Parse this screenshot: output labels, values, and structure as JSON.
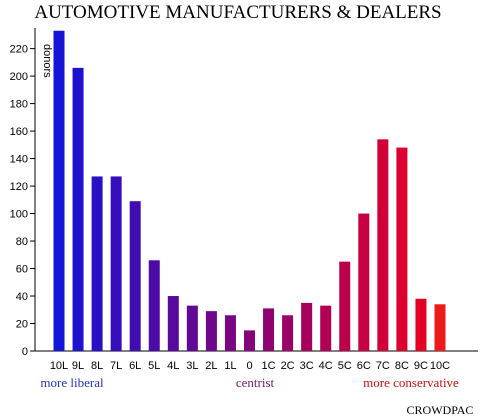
{
  "chart_data": {
    "type": "bar",
    "title": "AUTOMOTIVE MANUFACTURERS & DEALERS",
    "ylabel": "donors",
    "xlabel": "",
    "ylim": [
      0,
      235
    ],
    "yticks": [
      0,
      20,
      40,
      60,
      80,
      100,
      120,
      140,
      160,
      180,
      200,
      220
    ],
    "categories": [
      "10L",
      "9L",
      "8L",
      "7L",
      "6L",
      "5L",
      "4L",
      "3L",
      "2L",
      "1L",
      "0",
      "1C",
      "2C",
      "3C",
      "4C",
      "5C",
      "6C",
      "7C",
      "8C",
      "9C",
      "10C"
    ],
    "values": [
      233,
      206,
      127,
      127,
      109,
      66,
      40,
      33,
      29,
      26,
      15,
      31,
      26,
      35,
      33,
      65,
      100,
      154,
      148,
      38,
      34
    ],
    "colors": [
      "#1515d8",
      "#1f12cf",
      "#2a10c5",
      "#360ebc",
      "#410db2",
      "#4c0ba9",
      "#580a9f",
      "#620896",
      "#6e078c",
      "#790583",
      "#840479",
      "#8f0370",
      "#9a0266",
      "#a5015d",
      "#b00154",
      "#bb004a",
      "#c60041",
      "#d10037",
      "#dc002e",
      "#e40025",
      "#ec1a1a"
    ],
    "grid": false,
    "annotations": {
      "left": "more liberal",
      "center": "centrist",
      "right": "more conservative"
    },
    "annotation_colors": {
      "left": "#2233cc",
      "center": "#7a1a6a",
      "right": "#cc1111"
    },
    "brand": "CROWDPAC"
  }
}
